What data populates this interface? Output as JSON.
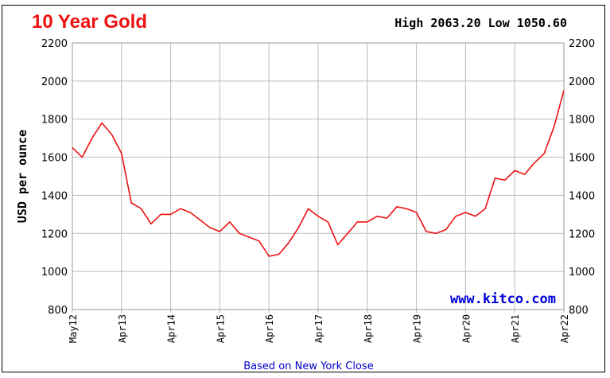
{
  "title": "10 Year Gold",
  "stats": {
    "high_label": "High",
    "high_value": "2063.20",
    "low_label": "Low",
    "low_value": "1050.60"
  },
  "footer": "Based on New York Close",
  "watermark": "www.kitco.com",
  "colors": {
    "line": "#ee1111",
    "title": "#ee1111",
    "grid": "#bbbbbb",
    "footer": "#0000cc",
    "watermark": "#0000dd"
  },
  "chart_data": {
    "type": "line",
    "title": "10 Year Gold",
    "xlabel": "",
    "ylabel": "USD per ounce",
    "ylim": [
      800,
      2200
    ],
    "y_ticks": [
      800,
      1000,
      1200,
      1400,
      1600,
      1800,
      2000,
      2200
    ],
    "y_axis_both_sides": true,
    "x_ticks": [
      "May12",
      "Apr13",
      "Apr14",
      "Apr15",
      "Apr16",
      "Apr17",
      "Apr18",
      "Apr19",
      "Apr20",
      "Apr21",
      "Apr22"
    ],
    "grid": true,
    "series": [
      {
        "name": "",
        "x": [
          0,
          0.2,
          0.4,
          0.6,
          0.8,
          1.0,
          1.2,
          1.4,
          1.6,
          1.8,
          2.0,
          2.2,
          2.4,
          2.6,
          2.8,
          3.0,
          3.2,
          3.4,
          3.6,
          3.8,
          4.0,
          4.2,
          4.4,
          4.6,
          4.8,
          5.0,
          5.2,
          5.4,
          5.6,
          5.8,
          6.0,
          6.2,
          6.4,
          6.6,
          6.8,
          7.0,
          7.2,
          7.4,
          7.6,
          7.8,
          8.0,
          8.2,
          8.4,
          8.6,
          8.8,
          9.0,
          9.2,
          9.4,
          9.6,
          9.8,
          10.0
        ],
        "y": [
          1650,
          1600,
          1700,
          1780,
          1720,
          1620,
          1360,
          1330,
          1250,
          1300,
          1300,
          1330,
          1310,
          1270,
          1230,
          1210,
          1260,
          1200,
          1180,
          1160,
          1080,
          1090,
          1150,
          1230,
          1330,
          1290,
          1260,
          1140,
          1200,
          1260,
          1260,
          1290,
          1280,
          1340,
          1330,
          1310,
          1210,
          1200,
          1220,
          1290,
          1310,
          1290,
          1330,
          1490,
          1480,
          1530,
          1510,
          1570,
          1620,
          1760,
          1950
        ]
      }
    ]
  }
}
